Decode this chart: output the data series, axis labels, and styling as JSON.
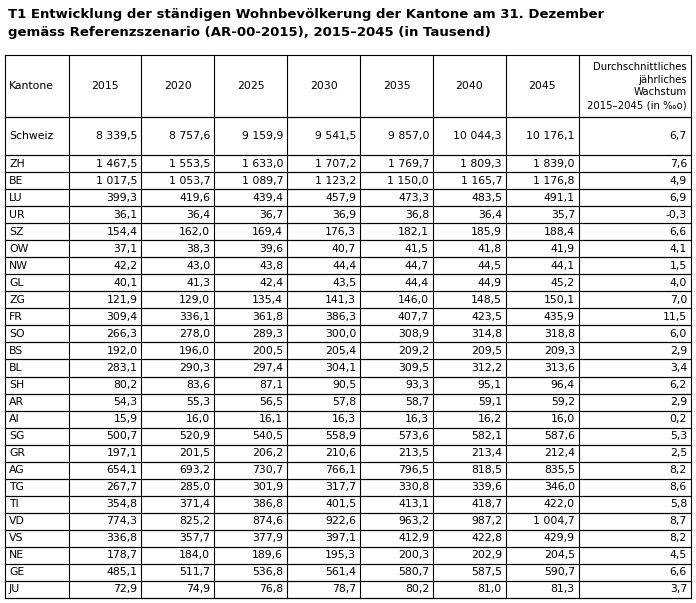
{
  "title_line1": "T1 Entwicklung der ständigen Wohnbevölkerung der Kantone am 31. Dezember",
  "title_line2": "gemäss Referenzszenario (AR-00-2015), 2015–2045 (in Tausend)",
  "col_headers": [
    "Kantone",
    "2015",
    "2020",
    "2025",
    "2030",
    "2035",
    "2040",
    "2045",
    "Durchschnittliches\njährliches\nWachstum\n2015–2045 (in ‰o)"
  ],
  "schweiz_row": [
    "Schweiz",
    "8 339,5",
    "8 757,6",
    "9 159,9",
    "9 541,5",
    "9 857,0",
    "10 044,3",
    "10 176,1",
    "6,7"
  ],
  "rows": [
    [
      "ZH",
      "1 467,5",
      "1 553,5",
      "1 633,0",
      "1 707,2",
      "1 769,7",
      "1 809,3",
      "1 839,0",
      "7,6"
    ],
    [
      "BE",
      "1 017,5",
      "1 053,7",
      "1 089,7",
      "1 123,2",
      "1 150,0",
      "1 165,7",
      "1 176,8",
      "4,9"
    ],
    [
      "LU",
      "399,3",
      "419,6",
      "439,4",
      "457,9",
      "473,3",
      "483,5",
      "491,1",
      "6,9"
    ],
    [
      "UR",
      "36,1",
      "36,4",
      "36,7",
      "36,9",
      "36,8",
      "36,4",
      "35,7",
      "-0,3"
    ],
    [
      "SZ",
      "154,4",
      "162,0",
      "169,4",
      "176,3",
      "182,1",
      "185,9",
      "188,4",
      "6,6"
    ],
    [
      "OW",
      "37,1",
      "38,3",
      "39,6",
      "40,7",
      "41,5",
      "41,8",
      "41,9",
      "4,1"
    ],
    [
      "NW",
      "42,2",
      "43,0",
      "43,8",
      "44,4",
      "44,7",
      "44,5",
      "44,1",
      "1,5"
    ],
    [
      "GL",
      "40,1",
      "41,3",
      "42,4",
      "43,5",
      "44,4",
      "44,9",
      "45,2",
      "4,0"
    ],
    [
      "ZG",
      "121,9",
      "129,0",
      "135,4",
      "141,3",
      "146,0",
      "148,5",
      "150,1",
      "7,0"
    ],
    [
      "FR",
      "309,4",
      "336,1",
      "361,8",
      "386,3",
      "407,7",
      "423,5",
      "435,9",
      "11,5"
    ],
    [
      "SO",
      "266,3",
      "278,0",
      "289,3",
      "300,0",
      "308,9",
      "314,8",
      "318,8",
      "6,0"
    ],
    [
      "BS",
      "192,0",
      "196,0",
      "200,5",
      "205,4",
      "209,2",
      "209,5",
      "209,3",
      "2,9"
    ],
    [
      "BL",
      "283,1",
      "290,3",
      "297,4",
      "304,1",
      "309,5",
      "312,2",
      "313,6",
      "3,4"
    ],
    [
      "SH",
      "80,2",
      "83,6",
      "87,1",
      "90,5",
      "93,3",
      "95,1",
      "96,4",
      "6,2"
    ],
    [
      "AR",
      "54,3",
      "55,3",
      "56,5",
      "57,8",
      "58,7",
      "59,1",
      "59,2",
      "2,9"
    ],
    [
      "AI",
      "15,9",
      "16,0",
      "16,1",
      "16,3",
      "16,3",
      "16,2",
      "16,0",
      "0,2"
    ],
    [
      "SG",
      "500,7",
      "520,9",
      "540,5",
      "558,9",
      "573,6",
      "582,1",
      "587,6",
      "5,3"
    ],
    [
      "GR",
      "197,1",
      "201,5",
      "206,2",
      "210,6",
      "213,5",
      "213,4",
      "212,4",
      "2,5"
    ],
    [
      "AG",
      "654,1",
      "693,2",
      "730,7",
      "766,1",
      "796,5",
      "818,5",
      "835,5",
      "8,2"
    ],
    [
      "TG",
      "267,7",
      "285,0",
      "301,9",
      "317,7",
      "330,8",
      "339,6",
      "346,0",
      "8,6"
    ],
    [
      "TI",
      "354,8",
      "371,4",
      "386,8",
      "401,5",
      "413,1",
      "418,7",
      "422,0",
      "5,8"
    ],
    [
      "VD",
      "774,3",
      "825,2",
      "874,6",
      "922,6",
      "963,2",
      "987,2",
      "1 004,7",
      "8,7"
    ],
    [
      "VS",
      "336,8",
      "357,7",
      "377,9",
      "397,1",
      "412,9",
      "422,8",
      "429,9",
      "8,2"
    ],
    [
      "NE",
      "178,7",
      "184,0",
      "189,6",
      "195,3",
      "200,3",
      "202,9",
      "204,5",
      "4,5"
    ],
    [
      "GE",
      "485,1",
      "511,7",
      "536,8",
      "561,4",
      "580,7",
      "587,5",
      "590,7",
      "6,6"
    ],
    [
      "JU",
      "72,9",
      "74,9",
      "76,8",
      "78,7",
      "80,2",
      "81,0",
      "81,3",
      "3,7"
    ]
  ],
  "bg_color": "#ffffff",
  "border_color": "#000000",
  "text_color": "#000000",
  "title_fontsize": 9.5,
  "header_fontsize": 7.8,
  "cell_fontsize": 7.8
}
